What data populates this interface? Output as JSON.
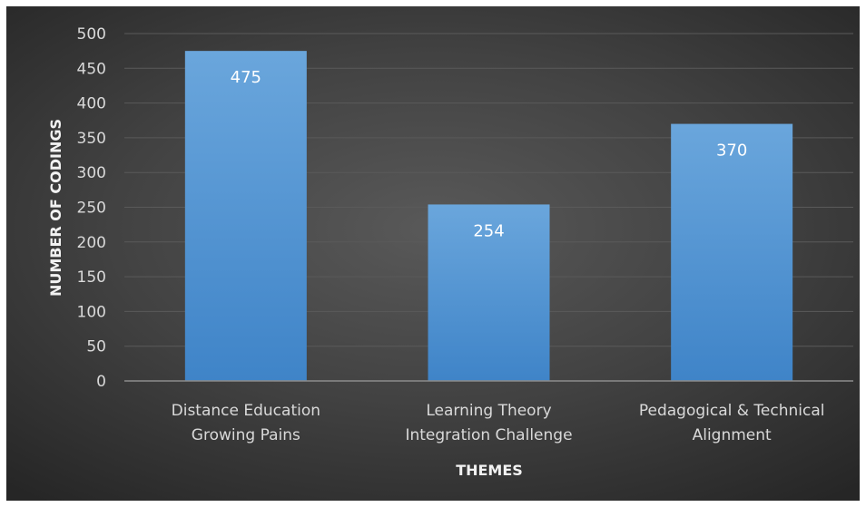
{
  "chart_data": {
    "type": "bar",
    "categories": [
      [
        "Distance Education",
        "Growing Pains"
      ],
      [
        "Learning Theory",
        "Integration Challenge"
      ],
      [
        "Pedagogical & Technical",
        "Alignment"
      ]
    ],
    "values": [
      475,
      254,
      370
    ],
    "data_labels": [
      "475",
      "254",
      "370"
    ],
    "xlabel": "THEMES",
    "ylabel": "NUMBER OF CODINGS",
    "ylim": [
      0,
      500
    ],
    "yticks": [
      "0",
      "50",
      "100",
      "150",
      "200",
      "250",
      "300",
      "350",
      "400",
      "450",
      "500"
    ],
    "grid": true,
    "bar_color": "#5b9bd5",
    "background_color": "#404040"
  }
}
